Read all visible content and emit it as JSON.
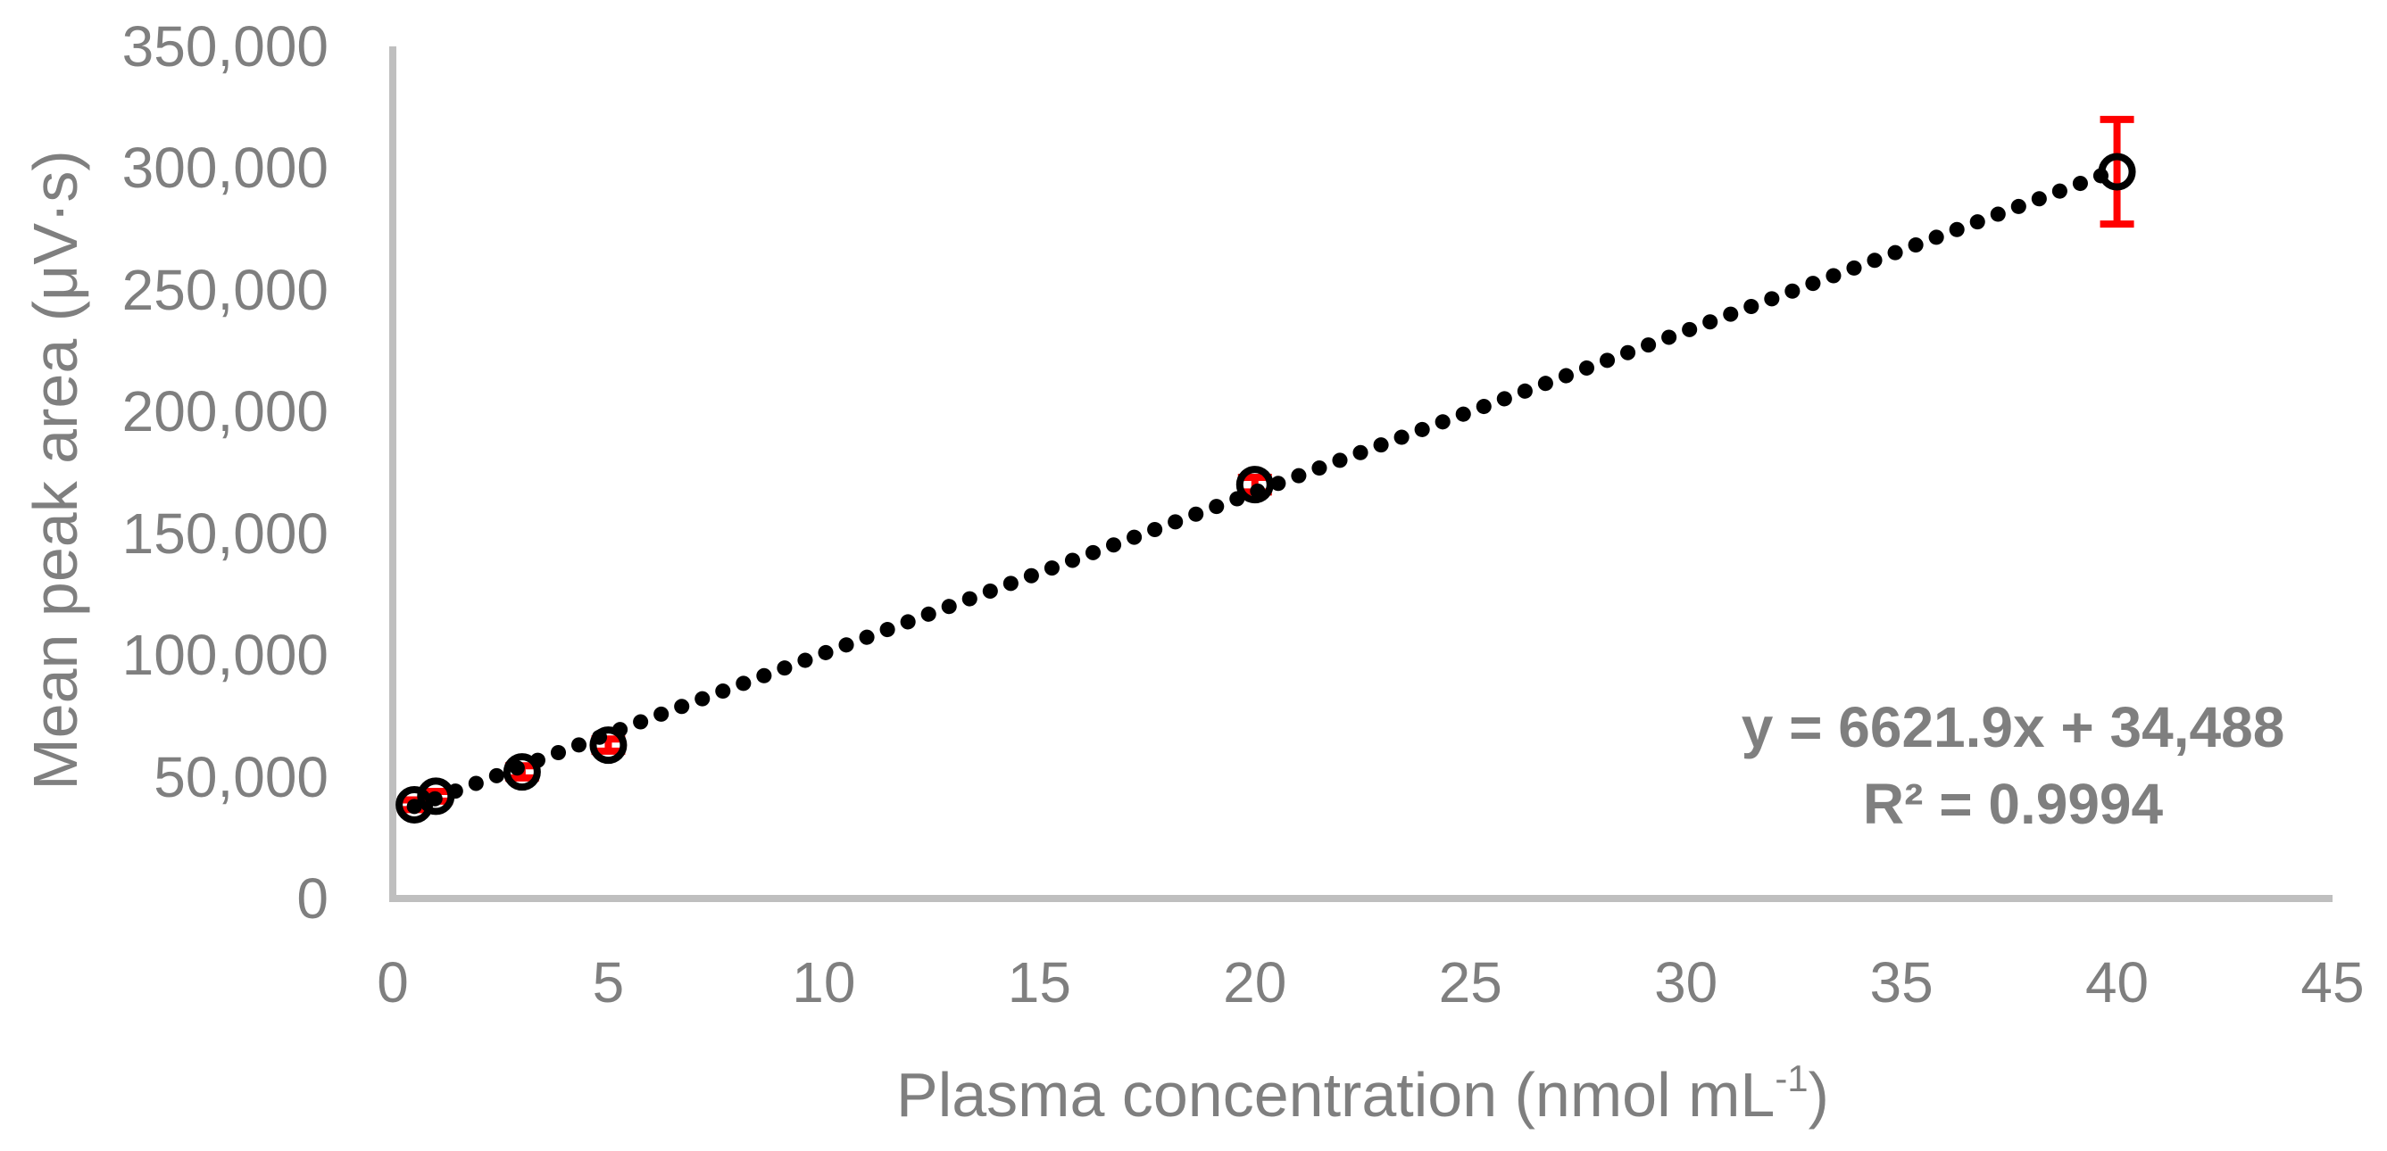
{
  "chart_data": {
    "type": "scatter",
    "title": "",
    "xlabel": {
      "prefix": "Plasma concentration (nmol mL",
      "sup": "-1",
      "suffix": ")"
    },
    "ylabel": "Mean peak area (μV·s)",
    "xlim": [
      0,
      45
    ],
    "ylim": [
      0,
      350000
    ],
    "grid": false,
    "legend": "none",
    "x_ticks": [
      0,
      5,
      10,
      15,
      20,
      25,
      30,
      35,
      40,
      45
    ],
    "x_tick_labels": [
      "0",
      "5",
      "10",
      "15",
      "20",
      "25",
      "30",
      "35",
      "40",
      "45"
    ],
    "y_ticks": [
      0,
      50000,
      100000,
      150000,
      200000,
      250000,
      300000,
      350000
    ],
    "y_tick_labels": [
      "0",
      "50,000",
      "100,000",
      "150,000",
      "200,000",
      "250,000",
      "300,000",
      "350,000"
    ],
    "series": [
      {
        "name": "calibration-points",
        "marker": "open-circle",
        "points": [
          {
            "x": 0.5,
            "y": 38500,
            "err": 2000
          },
          {
            "x": 1,
            "y": 42000,
            "err": 2000
          },
          {
            "x": 3,
            "y": 52000,
            "err": 2500
          },
          {
            "x": 5,
            "y": 63000,
            "err": 2500
          },
          {
            "x": 20,
            "y": 170000,
            "err": 3000
          },
          {
            "x": 40,
            "y": 298500,
            "err": 21500
          }
        ]
      }
    ],
    "trendline": {
      "style": "dotted",
      "slope": 6621.9,
      "intercept": 34488,
      "x_start": 0.5,
      "x_end": 40,
      "equation_label": "y = 6621.9x + 34,488",
      "r_squared_label": "R² = 0.9994"
    },
    "colors": {
      "axis_line": "#bfbfbf",
      "tick_label": "#7f7f7f",
      "axis_title": "#7f7f7f",
      "equation_text": "#7f7f7f",
      "error_bar": "#ff0000",
      "marker": "#000000",
      "trendline": "#000000",
      "background": "#ffffff"
    }
  }
}
